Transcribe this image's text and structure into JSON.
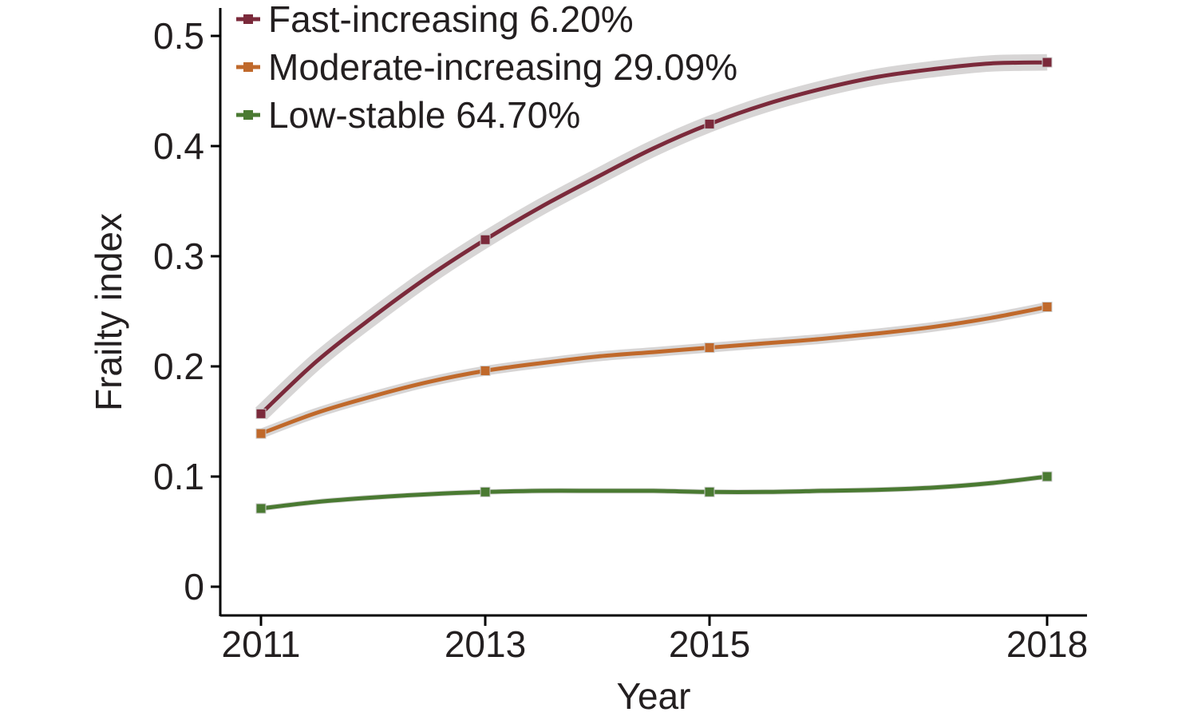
{
  "chart_data": {
    "type": "line",
    "xlabel": "Year",
    "ylabel": "Frailty index",
    "x_categories": [
      "2011",
      "2013",
      "2015",
      "2018"
    ],
    "x_values": [
      2011,
      2013,
      2015,
      2018
    ],
    "ylim": [
      -0.025,
      0.525
    ],
    "y_ticks": [
      0,
      0.1,
      0.2,
      0.3,
      0.4,
      0.5
    ],
    "y_tick_labels": [
      "0",
      "0.1",
      "0.2",
      "0.3",
      "0.4",
      "0.5"
    ],
    "grid": false,
    "legend_position": "top-left",
    "confidence_band_color": "#d3d0d0",
    "series": [
      {
        "name": "Fast-increasing 6.20%",
        "color": "#7b2a3b",
        "band_halfwidth": 0.006,
        "points": [
          {
            "x": 2011,
            "y": 0.157
          },
          {
            "x": 2013,
            "y": 0.315
          },
          {
            "x": 2015,
            "y": 0.42
          },
          {
            "x": 2018,
            "y": 0.476
          }
        ],
        "curve": [
          {
            "x": 2011,
            "y": 0.157
          },
          {
            "x": 2011.5,
            "y": 0.205
          },
          {
            "x": 2012,
            "y": 0.245
          },
          {
            "x": 2012.5,
            "y": 0.282
          },
          {
            "x": 2013,
            "y": 0.315
          },
          {
            "x": 2013.5,
            "y": 0.345
          },
          {
            "x": 2014,
            "y": 0.372
          },
          {
            "x": 2014.5,
            "y": 0.398
          },
          {
            "x": 2015,
            "y": 0.42
          },
          {
            "x": 2015.5,
            "y": 0.438
          },
          {
            "x": 2016,
            "y": 0.452
          },
          {
            "x": 2016.5,
            "y": 0.463
          },
          {
            "x": 2017,
            "y": 0.47
          },
          {
            "x": 2017.5,
            "y": 0.475
          },
          {
            "x": 2018,
            "y": 0.476
          }
        ]
      },
      {
        "name": "Moderate-increasing 29.09%",
        "color": "#c0692b",
        "band_halfwidth": 0.003,
        "points": [
          {
            "x": 2011,
            "y": 0.139
          },
          {
            "x": 2013,
            "y": 0.196
          },
          {
            "x": 2015,
            "y": 0.217
          },
          {
            "x": 2018,
            "y": 0.254
          }
        ],
        "curve": [
          {
            "x": 2011,
            "y": 0.139
          },
          {
            "x": 2011.5,
            "y": 0.158
          },
          {
            "x": 2012,
            "y": 0.173
          },
          {
            "x": 2012.5,
            "y": 0.186
          },
          {
            "x": 2013,
            "y": 0.196
          },
          {
            "x": 2013.5,
            "y": 0.203
          },
          {
            "x": 2014,
            "y": 0.209
          },
          {
            "x": 2014.5,
            "y": 0.213
          },
          {
            "x": 2015,
            "y": 0.217
          },
          {
            "x": 2015.5,
            "y": 0.221
          },
          {
            "x": 2016,
            "y": 0.225
          },
          {
            "x": 2016.5,
            "y": 0.23
          },
          {
            "x": 2017,
            "y": 0.236
          },
          {
            "x": 2017.5,
            "y": 0.244
          },
          {
            "x": 2018,
            "y": 0.254
          }
        ]
      },
      {
        "name": "Low-stable 64.70%",
        "color": "#4a7a32",
        "band_halfwidth": 0.001,
        "points": [
          {
            "x": 2011,
            "y": 0.071
          },
          {
            "x": 2013,
            "y": 0.086
          },
          {
            "x": 2015,
            "y": 0.086
          },
          {
            "x": 2018,
            "y": 0.1
          }
        ],
        "curve": [
          {
            "x": 2011,
            "y": 0.071
          },
          {
            "x": 2011.5,
            "y": 0.077
          },
          {
            "x": 2012,
            "y": 0.081
          },
          {
            "x": 2012.5,
            "y": 0.084
          },
          {
            "x": 2013,
            "y": 0.086
          },
          {
            "x": 2013.5,
            "y": 0.087
          },
          {
            "x": 2014,
            "y": 0.087
          },
          {
            "x": 2014.5,
            "y": 0.087
          },
          {
            "x": 2015,
            "y": 0.086
          },
          {
            "x": 2015.5,
            "y": 0.086
          },
          {
            "x": 2016,
            "y": 0.087
          },
          {
            "x": 2016.5,
            "y": 0.088
          },
          {
            "x": 2017,
            "y": 0.09
          },
          {
            "x": 2017.5,
            "y": 0.094
          },
          {
            "x": 2018,
            "y": 0.1
          }
        ]
      }
    ]
  }
}
